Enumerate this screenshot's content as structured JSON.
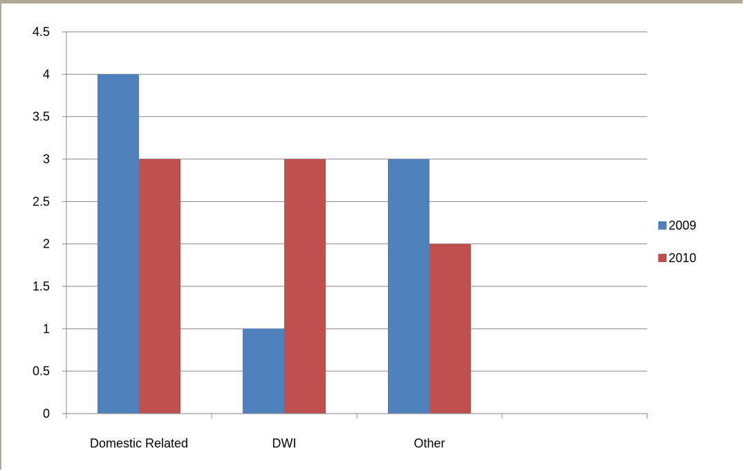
{
  "chart_data": {
    "type": "bar",
    "title": "",
    "xlabel": "",
    "ylabel": "",
    "categories": [
      "Domestic Related",
      "DWI",
      "Other",
      ""
    ],
    "series": [
      {
        "name": "2009",
        "values": [
          4,
          1,
          3,
          null
        ],
        "color": "#4f81bd"
      },
      {
        "name": "2010",
        "values": [
          3,
          3,
          2,
          null
        ],
        "color": "#c0504d"
      }
    ],
    "ylim": [
      0,
      4.5
    ],
    "yticks": [
      "0",
      "0.5",
      "1",
      "1.5",
      "2",
      "2.5",
      "3",
      "3.5",
      "4",
      "4.5"
    ],
    "grid": true,
    "legend": "right"
  }
}
